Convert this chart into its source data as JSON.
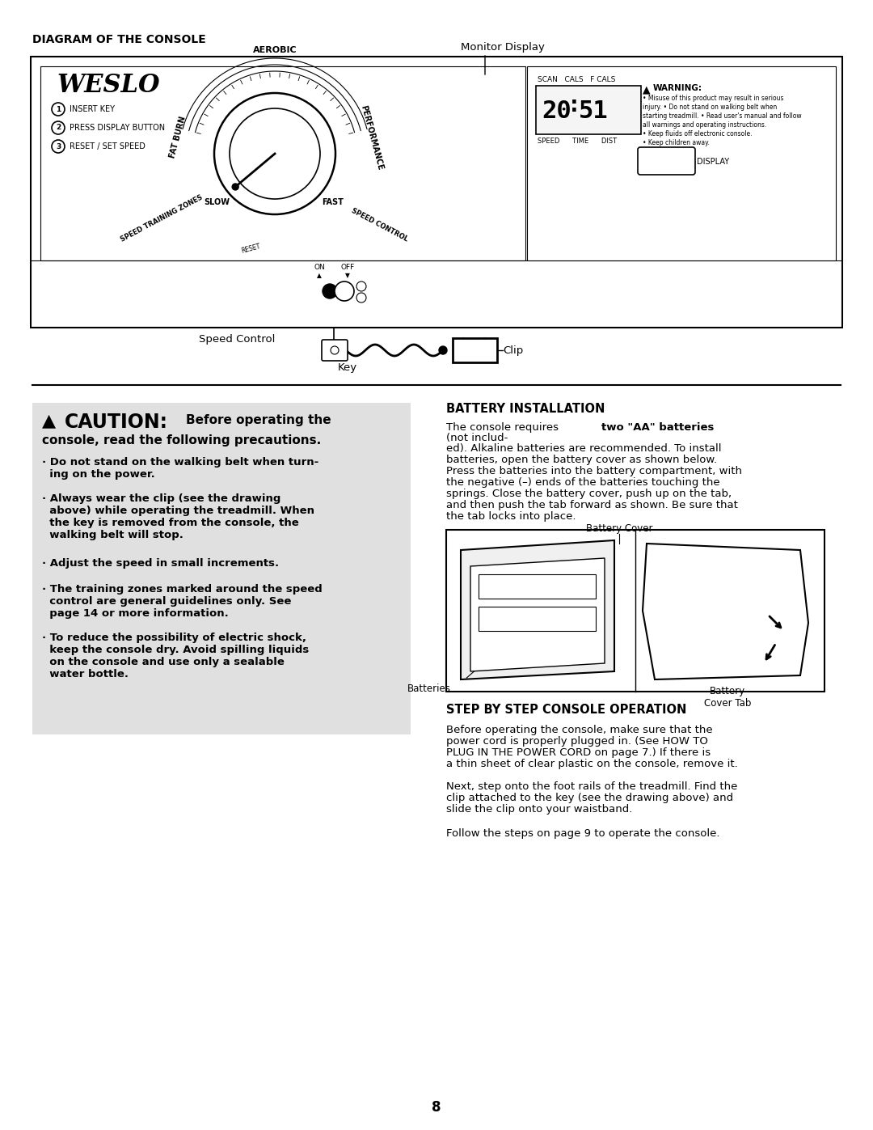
{
  "page_bg": "#ffffff",
  "section1_title": "DIAGRAM OF THE CONSOLE",
  "monitor_display_label": "Monitor Display",
  "weslo_text": "WESLO",
  "numbered_labels": [
    {
      "n": "1",
      "text": "INSERT KEY"
    },
    {
      "n": "2",
      "text": "PRESS DISPLAY BUTTON"
    },
    {
      "n": "3",
      "text": "RESET / SET SPEED"
    }
  ],
  "display_digits": "20 51",
  "scan_cals_fcals": "SCAN   CALS   F CALS",
  "speed_time_dist": "SPEED      TIME      DIST",
  "warning_title": "WARNING:",
  "display_label": "DISPLAY",
  "aerobic_text": "AEROBIC",
  "performance_text": "PERFORMANCE",
  "fat_burn_text": "FAT BURN",
  "slow_text": "SLOW",
  "fast_text": "FAST",
  "speed_training_zones": "SPEED TRAINING ZONES",
  "speed_control_label2": "SPEED CONTROL",
  "reset_text": "RESET",
  "on_text": "ON",
  "off_text": "OFF",
  "speed_control_label": "Speed Control",
  "key_label": "Key",
  "clip_label": "Clip",
  "section2_title": "BATTERY INSTALLATION",
  "battery_cover_label": "Battery Cover",
  "batteries_label": "Batteries",
  "battery_cover_tab_label": "Battery\nCover Tab",
  "section3_title": "STEP BY STEP CONSOLE OPERATION",
  "step_text1": "Before operating the console, make sure that the\npower cord is properly plugged in. (See HOW TO\nPLUG IN THE POWER CORD on page 7.) If there is\na thin sheet of clear plastic on the console, remove it.",
  "step_text2": "Next, step onto the foot rails of the treadmill. Find the\nclip attached to the key (see the drawing above) and\nslide the clip onto your waistband.",
  "step_text3": "Follow the steps on page 9 to operate the console.",
  "page_number": "8",
  "caution_bg": "#e0e0e0"
}
